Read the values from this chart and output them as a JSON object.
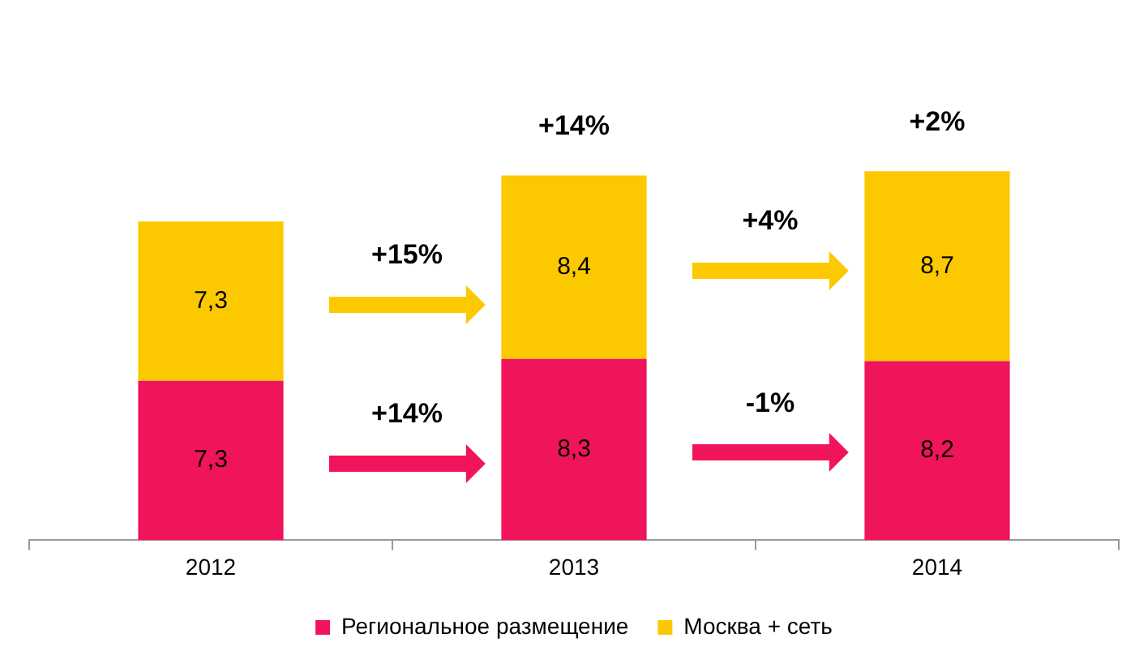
{
  "chart_data": {
    "type": "bar",
    "stacked": true,
    "categories": [
      "2012",
      "2013",
      "2014"
    ],
    "series": [
      {
        "name": "Региональное размещение",
        "color": "#f0145a",
        "values": [
          7.3,
          8.3,
          8.2
        ],
        "value_labels": [
          "7,3",
          "8,3",
          "8,2"
        ]
      },
      {
        "name": "Москва + сеть",
        "color": "#fcc900",
        "values": [
          7.3,
          8.4,
          8.7
        ],
        "value_labels": [
          "7,3",
          "8,4",
          "8,7"
        ]
      }
    ],
    "legend": "bottom",
    "grid": false,
    "annotations": [
      {
        "text": "+14%",
        "x": "2013",
        "y": 16.7
      },
      {
        "text": "+2%",
        "x": "2014",
        "y": 16.9
      },
      "+15%",
      "+4%",
      "+14%",
      "-1%"
    ]
  }
}
